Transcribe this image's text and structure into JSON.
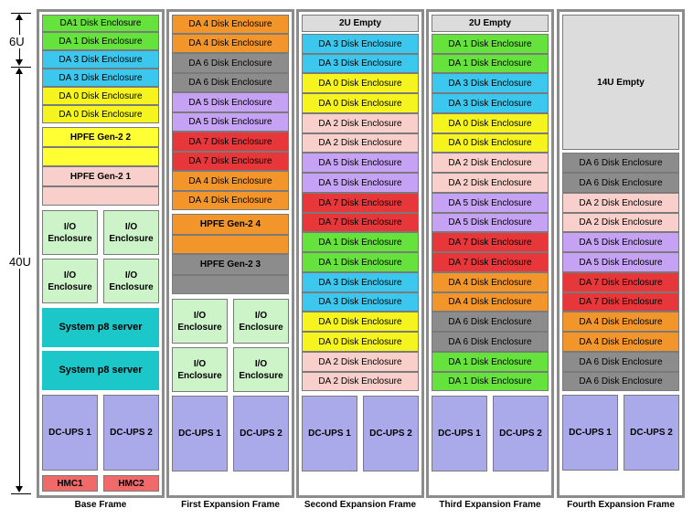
{
  "ruler": {
    "top_label": "6U",
    "main_label": "40U"
  },
  "colors": {
    "DA0": "#f6f41e",
    "DA1": "#66e23c",
    "DA2": "#f8cfcb",
    "DA3": "#3cc8ee",
    "DA4": "#f2962b",
    "DA5": "#c5a2f3",
    "DA6": "#8c8c8c",
    "DA7": "#e8373a",
    "hpfe_base": "#ffff33",
    "hpfe_exp": "#f2962b",
    "hpfe_exp_gray": "#8c8c8c",
    "io": "#cdf3c9",
    "server": "#1cc7c9",
    "ups": "#aaaaea",
    "hmc": "#f06a6a",
    "empty": "#dcdcdc"
  },
  "frames": [
    {
      "name": "Base Frame",
      "items": [
        {
          "label": "DA1 Disk Enclosure",
          "color": "DA1"
        },
        {
          "label": "DA 1 Disk Enclosure",
          "color": "DA1"
        },
        {
          "label": "DA 3 Disk Enclosure",
          "color": "DA3"
        },
        {
          "label": "DA 3 Disk Enclosure",
          "color": "DA3"
        },
        {
          "label": "DA 0 Disk Enclosure",
          "color": "DA0"
        },
        {
          "label": "DA 0 Disk Enclosure",
          "color": "DA0"
        },
        {
          "label": "HPFE Gen-2 2",
          "color": "hpfe_base"
        },
        {
          "label": "HPFE Gen-2 1",
          "color": "DA2"
        },
        {
          "label": "I/O Enclosure",
          "color": "io"
        },
        {
          "label": "I/O Enclosure",
          "color": "io"
        },
        {
          "label": "I/O Enclosure",
          "color": "io"
        },
        {
          "label": "I/O Enclosure",
          "color": "io"
        },
        {
          "label": "System p8 server",
          "color": "server"
        },
        {
          "label": "System p8 server",
          "color": "server"
        },
        {
          "label": "DC-UPS 1",
          "color": "ups"
        },
        {
          "label": "DC-UPS 2",
          "color": "ups"
        },
        {
          "label": "HMC1",
          "color": "hmc"
        },
        {
          "label": "HMC2",
          "color": "hmc"
        }
      ]
    },
    {
      "name": "First Expansion Frame",
      "items": [
        {
          "label": "DA 4 Disk Enclosure",
          "color": "DA4"
        },
        {
          "label": "DA 4 Disk Enclosure",
          "color": "DA4"
        },
        {
          "label": "DA 6 Disk Enclosure",
          "color": "DA6"
        },
        {
          "label": "DA 6 Disk Enclosure",
          "color": "DA6"
        },
        {
          "label": "DA 5 Disk Enclosure",
          "color": "DA5"
        },
        {
          "label": "DA 5 Disk Enclosure",
          "color": "DA5"
        },
        {
          "label": "DA 7 Disk Enclosure",
          "color": "DA7"
        },
        {
          "label": "DA 7 Disk Enclosure",
          "color": "DA7"
        },
        {
          "label": "DA 4 Disk Enclosure",
          "color": "DA4"
        },
        {
          "label": "DA 4 Disk Enclosure",
          "color": "DA4"
        },
        {
          "label": "HPFE Gen-2 4",
          "color": "hpfe_exp"
        },
        {
          "label": "HPFE Gen-2 3",
          "color": "hpfe_exp_gray"
        },
        {
          "label": "I/O Enclosure",
          "color": "io"
        },
        {
          "label": "I/O Enclosure",
          "color": "io"
        },
        {
          "label": "I/O Enclosure",
          "color": "io"
        },
        {
          "label": "I/O Enclosure",
          "color": "io"
        },
        {
          "label": "DC-UPS 1",
          "color": "ups"
        },
        {
          "label": "DC-UPS 2",
          "color": "ups"
        }
      ]
    },
    {
      "name": "Second Expansion Frame",
      "items": [
        {
          "label": "2U Empty",
          "color": "empty"
        },
        {
          "label": "DA 3 Disk Enclosure",
          "color": "DA3"
        },
        {
          "label": "DA 3 Disk Enclosure",
          "color": "DA3"
        },
        {
          "label": "DA 0 Disk Enclosure",
          "color": "DA0"
        },
        {
          "label": "DA 0 Disk Enclosure",
          "color": "DA0"
        },
        {
          "label": "DA 2 Disk Enclosure",
          "color": "DA2"
        },
        {
          "label": "DA 2 Disk Enclosure",
          "color": "DA2"
        },
        {
          "label": "DA 5 Disk Enclosure",
          "color": "DA5"
        },
        {
          "label": "DA 5 Disk Enclosure",
          "color": "DA5"
        },
        {
          "label": "DA 7 Disk Enclosure",
          "color": "DA7"
        },
        {
          "label": "DA 7 Disk Enclosure",
          "color": "DA7"
        },
        {
          "label": "DA 1 Disk Enclosure",
          "color": "DA1"
        },
        {
          "label": "DA 1 Disk Enclosure",
          "color": "DA1"
        },
        {
          "label": "DA 3 Disk Enclosure",
          "color": "DA3"
        },
        {
          "label": "DA 3 Disk Enclosure",
          "color": "DA3"
        },
        {
          "label": "DA 0 Disk Enclosure",
          "color": "DA0"
        },
        {
          "label": "DA 0 Disk Enclosure",
          "color": "DA0"
        },
        {
          "label": "DA 2 Disk Enclosure",
          "color": "DA2"
        },
        {
          "label": "DA 2 Disk Enclosure",
          "color": "DA2"
        },
        {
          "label": "DC-UPS 1",
          "color": "ups"
        },
        {
          "label": "DC-UPS 2",
          "color": "ups"
        }
      ]
    },
    {
      "name": "Third Expansion Frame",
      "items": [
        {
          "label": "2U Empty",
          "color": "empty"
        },
        {
          "label": "DA 1 Disk Enclosure",
          "color": "DA1"
        },
        {
          "label": "DA 1 Disk Enclosure",
          "color": "DA1"
        },
        {
          "label": "DA 3 Disk Enclosure",
          "color": "DA3"
        },
        {
          "label": "DA 3 Disk Enclosure",
          "color": "DA3"
        },
        {
          "label": "DA 0 Disk Enclosure",
          "color": "DA0"
        },
        {
          "label": "DA 0 Disk Enclosure",
          "color": "DA0"
        },
        {
          "label": "DA 2 Disk Enclosure",
          "color": "DA2"
        },
        {
          "label": "DA 2 Disk Enclosure",
          "color": "DA2"
        },
        {
          "label": "DA 5 Disk Enclosure",
          "color": "DA5"
        },
        {
          "label": "DA 5 Disk Enclosure",
          "color": "DA5"
        },
        {
          "label": "DA 7 Disk Enclosure",
          "color": "DA7"
        },
        {
          "label": "DA 7 Disk Enclosure",
          "color": "DA7"
        },
        {
          "label": "DA 4 Disk Enclosure",
          "color": "DA4"
        },
        {
          "label": "DA 4 Disk Enclosure",
          "color": "DA4"
        },
        {
          "label": "DA 6 Disk Enclosure",
          "color": "DA6"
        },
        {
          "label": "DA 6 Disk Enclosure",
          "color": "DA6"
        },
        {
          "label": "DA 1 Disk Enclosure",
          "color": "DA1"
        },
        {
          "label": "DA 1 Disk Enclosure",
          "color": "DA1"
        },
        {
          "label": "DC-UPS 1",
          "color": "ups"
        },
        {
          "label": "DC-UPS 2",
          "color": "ups"
        }
      ]
    },
    {
      "name": "Fourth Expansion Frame",
      "items": [
        {
          "label": "14U Empty",
          "color": "empty"
        },
        {
          "label": "DA 6 Disk Enclosure",
          "color": "DA6"
        },
        {
          "label": "DA 6 Disk Enclosure",
          "color": "DA6"
        },
        {
          "label": "DA 2 Disk Enclosure",
          "color": "DA2"
        },
        {
          "label": "DA 2 Disk Enclosure",
          "color": "DA2"
        },
        {
          "label": "DA 5 Disk Enclosure",
          "color": "DA5"
        },
        {
          "label": "DA 5 Disk Enclosure",
          "color": "DA5"
        },
        {
          "label": "DA 7 Disk Enclosure",
          "color": "DA7"
        },
        {
          "label": "DA 7 Disk Enclosure",
          "color": "DA7"
        },
        {
          "label": "DA 4 Disk Enclosure",
          "color": "DA4"
        },
        {
          "label": "DA 4 Disk Enclosure",
          "color": "DA4"
        },
        {
          "label": "DA 6 Disk Enclosure",
          "color": "DA6"
        },
        {
          "label": "DA 6 Disk Enclosure",
          "color": "DA6"
        },
        {
          "label": "DC-UPS 1",
          "color": "ups"
        },
        {
          "label": "DC-UPS 2",
          "color": "ups"
        }
      ]
    }
  ]
}
